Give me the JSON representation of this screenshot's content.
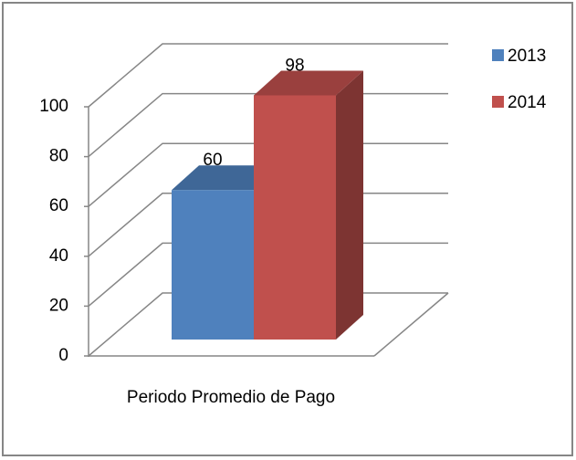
{
  "chart_data": {
    "type": "bar",
    "categories": [
      "Periodo Promedio de Pago"
    ],
    "series": [
      {
        "name": "2013",
        "color": "#4f81bd",
        "values": [
          60
        ]
      },
      {
        "name": "2014",
        "color": "#c0504d",
        "values": [
          98
        ]
      }
    ],
    "ylim": [
      0,
      100
    ],
    "yticks": [
      0,
      20,
      40,
      60,
      80,
      100
    ],
    "grid": true,
    "legend": "right"
  }
}
